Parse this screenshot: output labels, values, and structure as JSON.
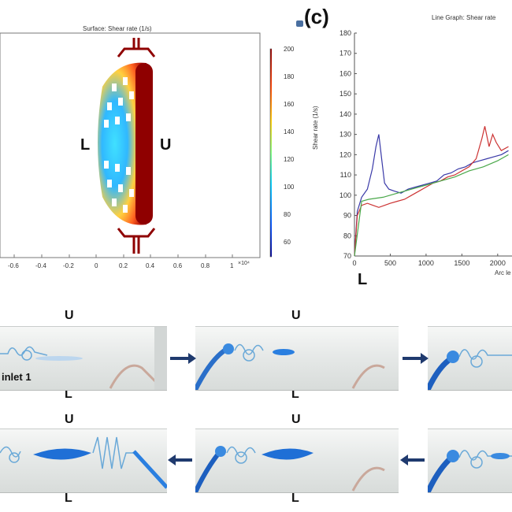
{
  "surface_panel": {
    "title": "Surface: Shear rate (1/s)",
    "left_label": "L",
    "right_label": "U",
    "x_ticks": [
      "-0.6",
      "-0.4",
      "-0.2",
      "0",
      "0.2",
      "0.4",
      "0.6",
      "0.8",
      "1"
    ],
    "x_exponent": "×10⁴",
    "colorbar_ticks": [
      "200",
      "180",
      "160",
      "140",
      "120",
      "100",
      "80",
      "60"
    ]
  },
  "line_panel": {
    "panel_label": "(c)",
    "title": "Line Graph: Shear rate",
    "ylabel": "Shear rate (1/s)",
    "xlabel": "Arc le",
    "corner_label": "L"
  },
  "chart_data": {
    "type": "line",
    "title": "Line Graph: Shear rate",
    "xlabel": "Arc le",
    "ylabel": "Shear rate (1/s)",
    "xlim": [
      0,
      2200
    ],
    "ylim": [
      70,
      180
    ],
    "x_ticks": [
      "0",
      "500",
      "1000",
      "1500",
      "2000"
    ],
    "y_ticks": [
      "70",
      "80",
      "90",
      "100",
      "110",
      "120",
      "130",
      "140",
      "150",
      "160",
      "170",
      "180"
    ],
    "series": [
      {
        "color": "#3a3aa8",
        "x": [
          0,
          40,
          100,
          180,
          250,
          300,
          340,
          380,
          420,
          480,
          560,
          650,
          750,
          850,
          950,
          1050,
          1150,
          1250,
          1350,
          1450,
          1550,
          1650,
          1750,
          1850,
          1950,
          2050,
          2150
        ],
        "y": [
          70,
          92,
          99,
          103,
          113,
          124,
          130,
          118,
          106,
          103,
          102,
          101,
          103,
          104,
          105,
          106,
          107,
          110,
          111,
          113,
          114,
          116,
          117,
          118,
          119,
          120,
          122
        ]
      },
      {
        "color": "#cc3333",
        "x": [
          0,
          40,
          100,
          180,
          260,
          340,
          420,
          500,
          600,
          700,
          800,
          900,
          1000,
          1100,
          1200,
          1300,
          1400,
          1500,
          1600,
          1700,
          1780,
          1820,
          1880,
          1930,
          1980,
          2050,
          2150
        ],
        "y": [
          70,
          90,
          95,
          96,
          95,
          94,
          95,
          96,
          97,
          98,
          100,
          102,
          104,
          106,
          107,
          109,
          110,
          112,
          114,
          118,
          128,
          134,
          124,
          130,
          126,
          122,
          124
        ]
      },
      {
        "color": "#4aa84a",
        "x": [
          0,
          100,
          200,
          400,
          600,
          800,
          1000,
          1200,
          1400,
          1600,
          1800,
          2000,
          2150
        ],
        "y": [
          70,
          97,
          98,
          99,
          101,
          103,
          105,
          107,
          109,
          112,
          114,
          117,
          120
        ]
      }
    ]
  },
  "photo_panels": {
    "top_labels": [
      "U",
      "U"
    ],
    "top_bottom_labels": [
      "L",
      "L"
    ],
    "bottom_labels": [
      "U",
      "U"
    ],
    "bottom_bottom_labels": [
      "L",
      "L"
    ],
    "inlet_label": "inlet 1"
  },
  "colors": {
    "navy_arrow": "#1f3a6e",
    "dye_blue": "#1f6fd6"
  }
}
